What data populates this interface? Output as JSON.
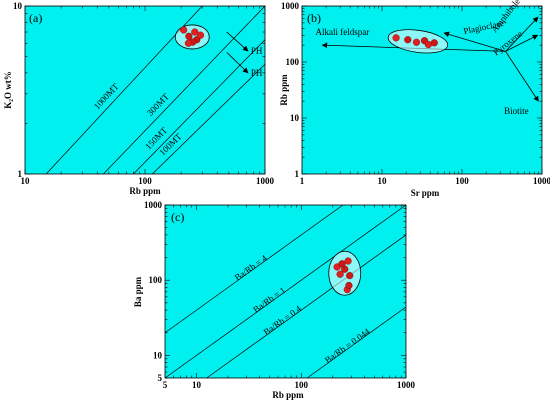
{
  "chart_data": [
    {
      "panel": "(a)",
      "type": "scatter",
      "x_scale": "log",
      "y_scale": "log",
      "xlim": [
        10,
        1000
      ],
      "ylim": [
        1,
        10
      ],
      "xlabel": "Rb ppm",
      "ylabel": "K₂O wt%",
      "x_ticks": [
        "10",
        "100",
        "1000"
      ],
      "y_ticks": [
        "1",
        "10"
      ],
      "reference_lines": [
        {
          "label": "1000MT",
          "points": [
            [
              15,
              1
            ],
            [
              300,
              10
            ]
          ]
        },
        {
          "label": "300MT",
          "points": [
            [
              45,
              1
            ],
            [
              1000,
              10
            ]
          ]
        },
        {
          "label": "150MT",
          "points": [
            [
              80,
              1
            ],
            [
              1000,
              6.3
            ]
          ]
        },
        {
          "label": "100MT",
          "points": [
            [
              115,
              1
            ],
            [
              1000,
              4.5
            ]
          ]
        }
      ],
      "arrows": [
        {
          "label": "PH",
          "from": [
            480,
            7.0
          ],
          "to": [
            720,
            5.4
          ]
        },
        {
          "label": "PH",
          "from": [
            480,
            5.3
          ],
          "to": [
            720,
            4.0
          ]
        }
      ],
      "points": [
        [
          210,
          7.2
        ],
        [
          232,
          6.6
        ],
        [
          260,
          7.0
        ],
        [
          270,
          6.3
        ],
        [
          290,
          6.7
        ],
        [
          250,
          6.1
        ],
        [
          230,
          6.0
        ]
      ],
      "grid": false
    },
    {
      "panel": "(b)",
      "type": "scatter",
      "x_scale": "log",
      "y_scale": "log",
      "xlim": [
        1,
        1000
      ],
      "ylim": [
        1,
        1000
      ],
      "xlabel": "Sr ppm",
      "ylabel": "Rb ppm",
      "x_ticks": [
        "1",
        "10",
        "100",
        "1000"
      ],
      "y_ticks": [
        "1",
        "10",
        "100",
        "1000"
      ],
      "vectors": [
        {
          "label": "Alkali feldspar",
          "to": [
            1.8,
            200
          ]
        },
        {
          "label": "Plagioclase",
          "to": [
            60,
            330
          ]
        },
        {
          "label": "Amphibole",
          "to": [
            890,
            630
          ]
        },
        {
          "label": "Pyroxene",
          "to": [
            880,
            300
          ]
        },
        {
          "label": "Biotite",
          "to": [
            900,
            20
          ]
        }
      ],
      "vector_origin": [
        350,
        155
      ],
      "points": [
        [
          15,
          270
        ],
        [
          21,
          250
        ],
        [
          27,
          225
        ],
        [
          34,
          240
        ],
        [
          38,
          205
        ],
        [
          45,
          220
        ]
      ],
      "grid": false
    },
    {
      "panel": "(c)",
      "type": "scatter",
      "x_scale": "log",
      "y_scale": "log",
      "xlim": [
        5,
        1000
      ],
      "ylim": [
        5,
        1000
      ],
      "xlabel": "Rb ppm",
      "ylabel": "Ba ppm",
      "x_ticks": [
        "5",
        "10",
        "100",
        "1000"
      ],
      "y_ticks": [
        "5",
        "10",
        "100",
        "1000"
      ],
      "reference_lines": [
        {
          "label": "Ba/Rb = 4",
          "ratio": 4
        },
        {
          "label": "Ba/Rb = 1",
          "ratio": 1
        },
        {
          "label": "Ba/Rb = 0.4",
          "ratio": 0.4
        },
        {
          "label": "Ba/Rb = 0.044",
          "ratio": 0.044
        }
      ],
      "points": [
        [
          220,
          150
        ],
        [
          245,
          165
        ],
        [
          280,
          180
        ],
        [
          260,
          140
        ],
        [
          235,
          120
        ],
        [
          290,
          115
        ],
        [
          275,
          75
        ],
        [
          285,
          85
        ]
      ],
      "grid": false
    }
  ],
  "colors": {
    "background": "#00f0f0",
    "point_fill": "#e02020",
    "point_fill_dark": "#c81818",
    "field_ellipse": "#ffffff"
  }
}
